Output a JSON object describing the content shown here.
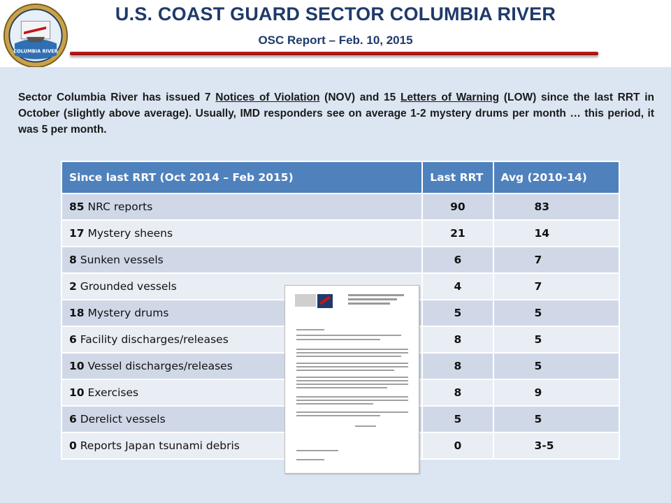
{
  "header": {
    "title": "U.S. COAST GUARD SECTOR COLUMBIA RIVER",
    "subtitle": "OSC Report – Feb. 10, 2015",
    "logo": {
      "icon": "coast-guard-seal-icon",
      "text": "COLUMBIA RIVER"
    },
    "rule_color": "#c0161b"
  },
  "intro": {
    "p1": "Sector Columbia River has issued 7 ",
    "nov_link": "Notices of Violation",
    "p2": " (NOV) and 15 ",
    "low_link": "Letters of Warning",
    "p3": " (LOW) since the last RRT in October (slightly above average).  Usually, IMD responders see on average 1-2 mystery drums per month … this period, it was 5 per month."
  },
  "table": {
    "headers": [
      "Since last RRT (Oct 2014 – Feb 2015)",
      "Last RRT",
      "Avg (2010-14)"
    ],
    "rows": [
      {
        "count": "85",
        "label": " NRC reports",
        "last": "90",
        "avg": "83"
      },
      {
        "count": "17",
        "label": " Mystery sheens",
        "last": "21",
        "avg": "14"
      },
      {
        "count": "8",
        "label": " Sunken vessels",
        "last": "6",
        "avg": "7"
      },
      {
        "count": "2",
        "label": " Grounded vessels",
        "last": "4",
        "avg": "7"
      },
      {
        "count": "18",
        "label": " Mystery drums",
        "last": "5",
        "avg": "5"
      },
      {
        "count": "6",
        "label": " Facility discharges/releases",
        "last": "8",
        "avg": "5"
      },
      {
        "count": "10",
        "label": " Vessel discharges/releases",
        "last": "8",
        "avg": "5"
      },
      {
        "count": "10",
        "label": " Exercises",
        "last": "8",
        "avg": "9"
      },
      {
        "count": "6",
        "label": " Derelict vessels",
        "last": "5",
        "avg": "5"
      },
      {
        "count": "0",
        "label": " Reports Japan tsunami debris",
        "last": "0",
        "avg": "3-5"
      }
    ]
  },
  "colors": {
    "title": "#1f3a6b",
    "content_bg": "#dce6f2",
    "table_header": "#4f81bd",
    "row_odd": "#d0d8e8",
    "row_even": "#e9edf4"
  }
}
